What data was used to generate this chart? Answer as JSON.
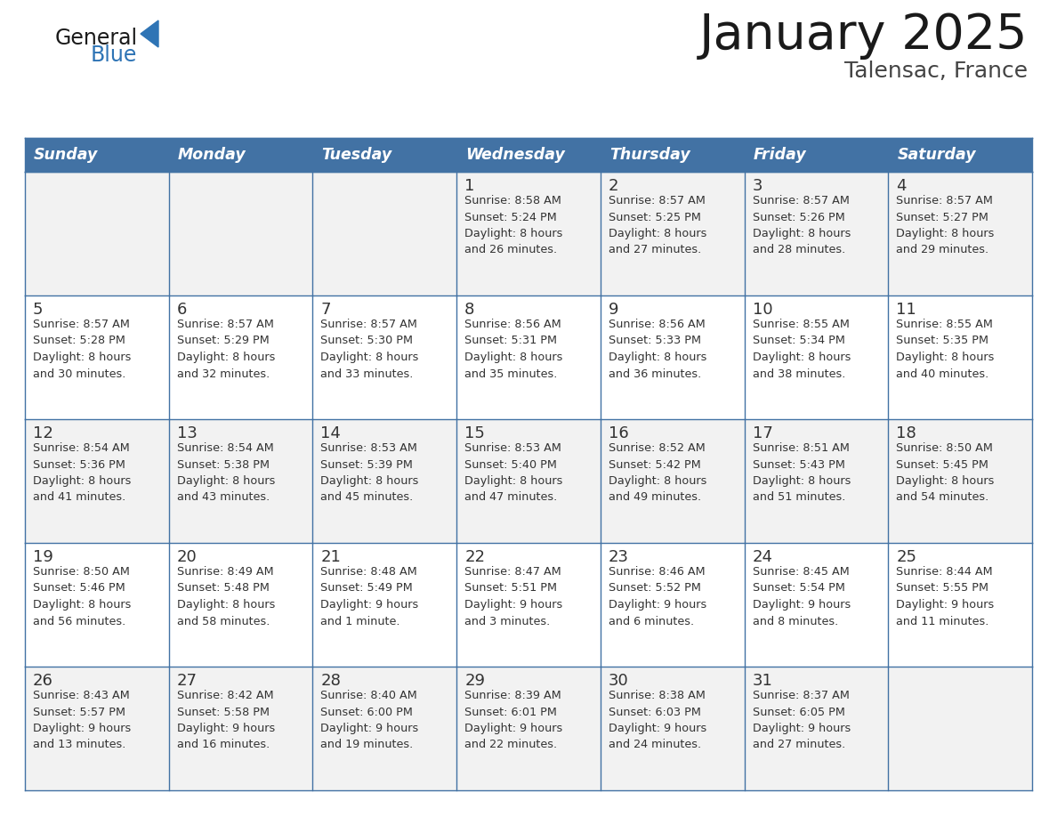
{
  "title": "January 2025",
  "subtitle": "Talensac, France",
  "header_color": "#4272A4",
  "header_text_color": "#FFFFFF",
  "day_names": [
    "Sunday",
    "Monday",
    "Tuesday",
    "Wednesday",
    "Thursday",
    "Friday",
    "Saturday"
  ],
  "row_colors": [
    "#F2F2F2",
    "#FFFFFF"
  ],
  "border_color": "#4272A4",
  "cell_text_color": "#333333",
  "day_num_color": "#333333",
  "title_color": "#1a1a1a",
  "subtitle_color": "#444444",
  "logo_general_color": "#1a1a1a",
  "logo_blue_color": "#2E74B5",
  "weeks": [
    {
      "days": [
        {
          "date": null,
          "info": null
        },
        {
          "date": null,
          "info": null
        },
        {
          "date": null,
          "info": null
        },
        {
          "date": 1,
          "info": "Sunrise: 8:58 AM\nSunset: 5:24 PM\nDaylight: 8 hours\nand 26 minutes."
        },
        {
          "date": 2,
          "info": "Sunrise: 8:57 AM\nSunset: 5:25 PM\nDaylight: 8 hours\nand 27 minutes."
        },
        {
          "date": 3,
          "info": "Sunrise: 8:57 AM\nSunset: 5:26 PM\nDaylight: 8 hours\nand 28 minutes."
        },
        {
          "date": 4,
          "info": "Sunrise: 8:57 AM\nSunset: 5:27 PM\nDaylight: 8 hours\nand 29 minutes."
        }
      ]
    },
    {
      "days": [
        {
          "date": 5,
          "info": "Sunrise: 8:57 AM\nSunset: 5:28 PM\nDaylight: 8 hours\nand 30 minutes."
        },
        {
          "date": 6,
          "info": "Sunrise: 8:57 AM\nSunset: 5:29 PM\nDaylight: 8 hours\nand 32 minutes."
        },
        {
          "date": 7,
          "info": "Sunrise: 8:57 AM\nSunset: 5:30 PM\nDaylight: 8 hours\nand 33 minutes."
        },
        {
          "date": 8,
          "info": "Sunrise: 8:56 AM\nSunset: 5:31 PM\nDaylight: 8 hours\nand 35 minutes."
        },
        {
          "date": 9,
          "info": "Sunrise: 8:56 AM\nSunset: 5:33 PM\nDaylight: 8 hours\nand 36 minutes."
        },
        {
          "date": 10,
          "info": "Sunrise: 8:55 AM\nSunset: 5:34 PM\nDaylight: 8 hours\nand 38 minutes."
        },
        {
          "date": 11,
          "info": "Sunrise: 8:55 AM\nSunset: 5:35 PM\nDaylight: 8 hours\nand 40 minutes."
        }
      ]
    },
    {
      "days": [
        {
          "date": 12,
          "info": "Sunrise: 8:54 AM\nSunset: 5:36 PM\nDaylight: 8 hours\nand 41 minutes."
        },
        {
          "date": 13,
          "info": "Sunrise: 8:54 AM\nSunset: 5:38 PM\nDaylight: 8 hours\nand 43 minutes."
        },
        {
          "date": 14,
          "info": "Sunrise: 8:53 AM\nSunset: 5:39 PM\nDaylight: 8 hours\nand 45 minutes."
        },
        {
          "date": 15,
          "info": "Sunrise: 8:53 AM\nSunset: 5:40 PM\nDaylight: 8 hours\nand 47 minutes."
        },
        {
          "date": 16,
          "info": "Sunrise: 8:52 AM\nSunset: 5:42 PM\nDaylight: 8 hours\nand 49 minutes."
        },
        {
          "date": 17,
          "info": "Sunrise: 8:51 AM\nSunset: 5:43 PM\nDaylight: 8 hours\nand 51 minutes."
        },
        {
          "date": 18,
          "info": "Sunrise: 8:50 AM\nSunset: 5:45 PM\nDaylight: 8 hours\nand 54 minutes."
        }
      ]
    },
    {
      "days": [
        {
          "date": 19,
          "info": "Sunrise: 8:50 AM\nSunset: 5:46 PM\nDaylight: 8 hours\nand 56 minutes."
        },
        {
          "date": 20,
          "info": "Sunrise: 8:49 AM\nSunset: 5:48 PM\nDaylight: 8 hours\nand 58 minutes."
        },
        {
          "date": 21,
          "info": "Sunrise: 8:48 AM\nSunset: 5:49 PM\nDaylight: 9 hours\nand 1 minute."
        },
        {
          "date": 22,
          "info": "Sunrise: 8:47 AM\nSunset: 5:51 PM\nDaylight: 9 hours\nand 3 minutes."
        },
        {
          "date": 23,
          "info": "Sunrise: 8:46 AM\nSunset: 5:52 PM\nDaylight: 9 hours\nand 6 minutes."
        },
        {
          "date": 24,
          "info": "Sunrise: 8:45 AM\nSunset: 5:54 PM\nDaylight: 9 hours\nand 8 minutes."
        },
        {
          "date": 25,
          "info": "Sunrise: 8:44 AM\nSunset: 5:55 PM\nDaylight: 9 hours\nand 11 minutes."
        }
      ]
    },
    {
      "days": [
        {
          "date": 26,
          "info": "Sunrise: 8:43 AM\nSunset: 5:57 PM\nDaylight: 9 hours\nand 13 minutes."
        },
        {
          "date": 27,
          "info": "Sunrise: 8:42 AM\nSunset: 5:58 PM\nDaylight: 9 hours\nand 16 minutes."
        },
        {
          "date": 28,
          "info": "Sunrise: 8:40 AM\nSunset: 6:00 PM\nDaylight: 9 hours\nand 19 minutes."
        },
        {
          "date": 29,
          "info": "Sunrise: 8:39 AM\nSunset: 6:01 PM\nDaylight: 9 hours\nand 22 minutes."
        },
        {
          "date": 30,
          "info": "Sunrise: 8:38 AM\nSunset: 6:03 PM\nDaylight: 9 hours\nand 24 minutes."
        },
        {
          "date": 31,
          "info": "Sunrise: 8:37 AM\nSunset: 6:05 PM\nDaylight: 9 hours\nand 27 minutes."
        },
        {
          "date": null,
          "info": null
        }
      ]
    }
  ]
}
